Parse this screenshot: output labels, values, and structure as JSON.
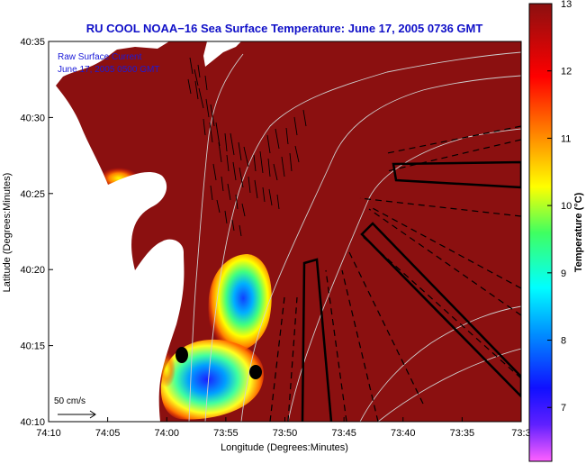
{
  "chart_data": {
    "type": "heatmap",
    "title": "RU COOL  NOAA−16  Sea Surface Temperature:  June 17, 2005 0736 GMT",
    "xlabel": "Longitude (Degrees:Minutes)",
    "ylabel": "Latitude (Degrees:Minutes)",
    "colorbar_label": "Temperature (°C)",
    "x_ticks": [
      "74:10",
      "74:05",
      "74:00",
      "73:55",
      "73:50",
      "73:45",
      "73:40",
      "73:35",
      "73:3"
    ],
    "y_ticks": [
      "40:35",
      "40:30",
      "40:25",
      "40:20",
      "40:15",
      "40:10"
    ],
    "xlim": [
      "74:10",
      "73:30"
    ],
    "ylim": [
      "40:10",
      "40:35"
    ],
    "colorbar_ticks": [
      "13",
      "12",
      "11",
      "10",
      "9",
      "8",
      "7"
    ],
    "colorbar_range": [
      6.2,
      13
    ],
    "colormap": [
      "#ff60ff",
      "#6020ff",
      "#0010ff",
      "#00a0ff",
      "#00ffff",
      "#40ff60",
      "#ffff00",
      "#ff8000",
      "#ff0000",
      "#8b1010"
    ],
    "background_temperature": 13,
    "annotations": [
      "Raw Surface Current",
      "June 17, 2005 0500 GMT"
    ],
    "scale_label": "50 cm/s",
    "markers": [
      {
        "lon": "73:58.8",
        "lat": "40:14.0",
        "name": "station-marker"
      },
      {
        "lon": "73:52.6",
        "lat": "40:13.3",
        "name": "station-marker"
      }
    ],
    "colors": {
      "land": "#ffffff",
      "sst_max": "#8b1010",
      "title": "#1010c8",
      "contours": "#cfcfcf",
      "vectors": "#000000"
    }
  }
}
